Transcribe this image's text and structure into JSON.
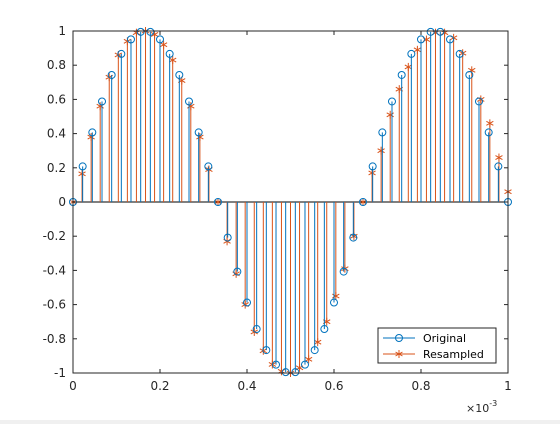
{
  "chart_data": {
    "type": "stem",
    "xlim": [
      0,
      0.001
    ],
    "ylim": [
      -1,
      1
    ],
    "x_exponent_label": "×10",
    "x_exponent": "-3",
    "x_ticks": [
      0,
      0.0002,
      0.0004,
      0.0006,
      0.0008,
      0.001
    ],
    "x_tick_labels": [
      "0",
      "0.2",
      "0.4",
      "0.6",
      "0.8",
      "1"
    ],
    "y_ticks": [
      -1,
      -0.8,
      -0.6,
      -0.4,
      -0.2,
      0,
      0.2,
      0.4,
      0.6,
      0.8,
      1
    ],
    "y_tick_labels": [
      "-1",
      "-0.8",
      "-0.6",
      "-0.4",
      "-0.2",
      "0",
      "0.2",
      "0.4",
      "0.6",
      "0.8",
      "1"
    ],
    "grid": false,
    "legend_position": "bottom-right",
    "series": [
      {
        "name": "Original",
        "marker": "circle",
        "color": "#0072BD",
        "x": [
          0,
          2.22e-05,
          4.44e-05,
          6.67e-05,
          8.89e-05,
          0.0001111,
          0.0001333,
          0.0001556,
          0.0001778,
          0.0002,
          0.0002222,
          0.0002444,
          0.0002667,
          0.0002889,
          0.0003111,
          0.0003333,
          0.0003556,
          0.0003778,
          0.0004,
          0.0004222,
          0.0004444,
          0.0004667,
          0.0004889,
          0.0005111,
          0.0005333,
          0.0005556,
          0.0005778,
          0.0006,
          0.0006222,
          0.0006444,
          0.0006667,
          0.0006889,
          0.0007111,
          0.0007333,
          0.0007556,
          0.0007778,
          0.0008,
          0.0008222,
          0.0008444,
          0.0008667,
          0.0008889,
          0.0009111,
          0.0009333,
          0.0009556,
          0.0009778,
          0.001
        ],
        "y": [
          0,
          0.208,
          0.407,
          0.588,
          0.743,
          0.866,
          0.951,
          0.995,
          0.995,
          0.951,
          0.866,
          0.743,
          0.588,
          0.407,
          0.208,
          0,
          -0.208,
          -0.407,
          -0.588,
          -0.743,
          -0.866,
          -0.951,
          -0.995,
          -0.995,
          -0.951,
          -0.866,
          -0.743,
          -0.588,
          -0.407,
          -0.208,
          0,
          0.208,
          0.407,
          0.588,
          0.743,
          0.866,
          0.951,
          0.995,
          0.995,
          0.951,
          0.866,
          0.743,
          0.588,
          0.407,
          0.208,
          0
        ]
      },
      {
        "name": "Resampled",
        "marker": "asterisk",
        "color": "#D95319",
        "x": [
          0,
          2.08e-05,
          4.17e-05,
          6.25e-05,
          8.33e-05,
          0.0001042,
          0.000125,
          0.0001458,
          0.0001667,
          0.0001875,
          0.0002083,
          0.0002292,
          0.00025,
          0.0002708,
          0.0002917,
          0.0003125,
          0.0003333,
          0.0003542,
          0.000375,
          0.0003958,
          0.0004167,
          0.0004375,
          0.0004583,
          0.0004792,
          0.0005,
          0.0005208,
          0.0005417,
          0.0005625,
          0.0005833,
          0.0006042,
          0.000625,
          0.0006458,
          0.0006667,
          0.0006875,
          0.0007083,
          0.0007292,
          0.00075,
          0.0007708,
          0.0007917,
          0.0008125,
          0.0008333,
          0.0008542,
          0.000875,
          0.0008958,
          0.0009167,
          0.0009375,
          0.0009583,
          0.0009792,
          0.001
        ],
        "y": [
          0,
          0.165,
          0.38,
          0.56,
          0.73,
          0.86,
          0.94,
          0.99,
          1.0,
          0.98,
          0.92,
          0.83,
          0.71,
          0.56,
          0.38,
          0.19,
          0,
          -0.23,
          -0.42,
          -0.6,
          -0.76,
          -0.87,
          -0.95,
          -0.99,
          -1.0,
          -0.97,
          -0.92,
          -0.82,
          -0.7,
          -0.55,
          -0.39,
          -0.2,
          0,
          0.17,
          0.3,
          0.51,
          0.66,
          0.79,
          0.89,
          0.95,
          0.99,
          0.99,
          0.96,
          0.87,
          0.77,
          0.6,
          0.46,
          0.26,
          0.06
        ]
      }
    ]
  }
}
